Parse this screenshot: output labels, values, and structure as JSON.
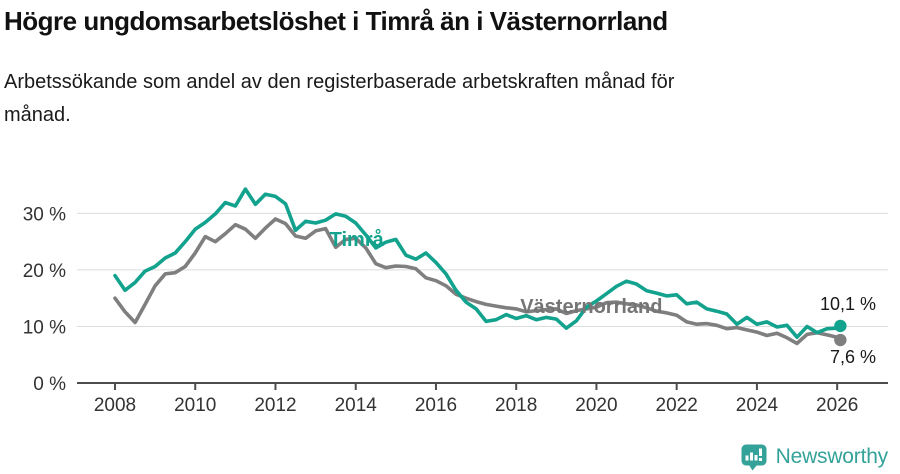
{
  "header": {
    "title": "Högre ungdomsarbetslöshet i Timrå än i Västernorrland",
    "subtitle": "Arbetssökande som andel av den registerbaserade arbetskraften månad för månad."
  },
  "chart_data": {
    "type": "line",
    "title": "",
    "xlabel": "",
    "ylabel": "",
    "grid": "horizontal",
    "legend_position": "inline-labels",
    "xlim": [
      2007.1,
      2027.3
    ],
    "ylim": [
      0,
      36
    ],
    "x_ticks": [
      2008,
      2010,
      2012,
      2014,
      2016,
      2018,
      2020,
      2022,
      2024,
      2026
    ],
    "y_ticks": [
      {
        "value": 0,
        "label": "0 %"
      },
      {
        "value": 10,
        "label": "10 %"
      },
      {
        "value": 20,
        "label": "20 %"
      },
      {
        "value": 30,
        "label": "30 %"
      }
    ],
    "x": [
      2008,
      2008.25,
      2008.5,
      2008.75,
      2009,
      2009.25,
      2009.5,
      2009.75,
      2010,
      2010.25,
      2010.5,
      2010.75,
      2011,
      2011.25,
      2011.5,
      2011.75,
      2012,
      2012.25,
      2012.5,
      2012.75,
      2013,
      2013.25,
      2013.5,
      2013.75,
      2014,
      2014.25,
      2014.5,
      2014.75,
      2015,
      2015.25,
      2015.5,
      2015.75,
      2016,
      2016.25,
      2016.5,
      2016.75,
      2017,
      2017.25,
      2017.5,
      2017.75,
      2018,
      2018.25,
      2018.5,
      2018.75,
      2019,
      2019.25,
      2019.5,
      2019.75,
      2020,
      2020.25,
      2020.5,
      2020.75,
      2021,
      2021.25,
      2021.5,
      2021.75,
      2022,
      2022.25,
      2022.5,
      2022.75,
      2023,
      2023.25,
      2023.5,
      2023.75,
      2024,
      2024.25,
      2024.5,
      2024.75,
      2025,
      2025.25,
      2025.5,
      2025.75,
      2026,
      2026.08
    ],
    "series": [
      {
        "name": "Timrå",
        "color": "#12a28d",
        "end_label": "10,1 %",
        "values": [
          19.0,
          16.4,
          17.8,
          19.8,
          20.6,
          22.1,
          23.0,
          25.0,
          27.2,
          28.4,
          29.9,
          31.9,
          31.3,
          34.3,
          31.6,
          33.4,
          33.0,
          31.7,
          27.0,
          28.6,
          28.3,
          28.8,
          29.9,
          29.5,
          28.3,
          26.2,
          23.9,
          24.9,
          25.4,
          22.6,
          21.9,
          23.0,
          21.3,
          19.3,
          16.4,
          14.3,
          13.1,
          10.9,
          11.2,
          12.1,
          11.4,
          11.9,
          11.2,
          11.6,
          11.3,
          9.7,
          11.0,
          13.4,
          14.5,
          15.8,
          17.1,
          18.0,
          17.5,
          16.3,
          15.9,
          15.4,
          15.6,
          14.0,
          14.3,
          13.1,
          12.7,
          12.2,
          10.4,
          11.6,
          10.4,
          10.8,
          9.9,
          10.2,
          8.1,
          10.0,
          8.9,
          9.6,
          9.7,
          10.1
        ]
      },
      {
        "name": "Västernorrland",
        "color": "#7f7f7f",
        "end_label": "7,6 %",
        "values": [
          15.0,
          12.6,
          10.7,
          13.9,
          17.2,
          19.3,
          19.5,
          20.6,
          23.0,
          25.9,
          25.0,
          26.4,
          28.0,
          27.2,
          25.6,
          27.4,
          29.0,
          28.2,
          26.0,
          25.6,
          26.9,
          27.3,
          24.0,
          25.4,
          25.6,
          23.9,
          21.1,
          20.4,
          20.7,
          20.6,
          20.2,
          18.6,
          18.1,
          17.2,
          15.7,
          15.0,
          14.4,
          13.9,
          13.6,
          13.3,
          13.1,
          12.6,
          12.8,
          13.0,
          13.1,
          12.3,
          12.8,
          13.1,
          13.4,
          14.2,
          14.3,
          14.0,
          13.8,
          13.3,
          12.7,
          12.4,
          12.0,
          10.8,
          10.4,
          10.5,
          10.2,
          9.6,
          9.8,
          9.4,
          9.0,
          8.4,
          8.8,
          8.0,
          7.0,
          8.6,
          8.9,
          8.5,
          8.1,
          7.6
        ]
      }
    ],
    "annotations": [
      {
        "text": "Timrå",
        "x": 2013.35,
        "y": 24.2,
        "color": "#12a28d"
      },
      {
        "text": "Västernorrland",
        "x": 2018.1,
        "y": 12.4,
        "color": "#757575"
      }
    ],
    "style": {
      "grid_color": "#dcdcdc",
      "axis_color": "#4d4d4d",
      "tick_label_color": "#333333",
      "end_label_color": "#1a1a1a"
    }
  },
  "footer": {
    "brand": "Newsworthy",
    "logo_color": "#35a29a"
  }
}
